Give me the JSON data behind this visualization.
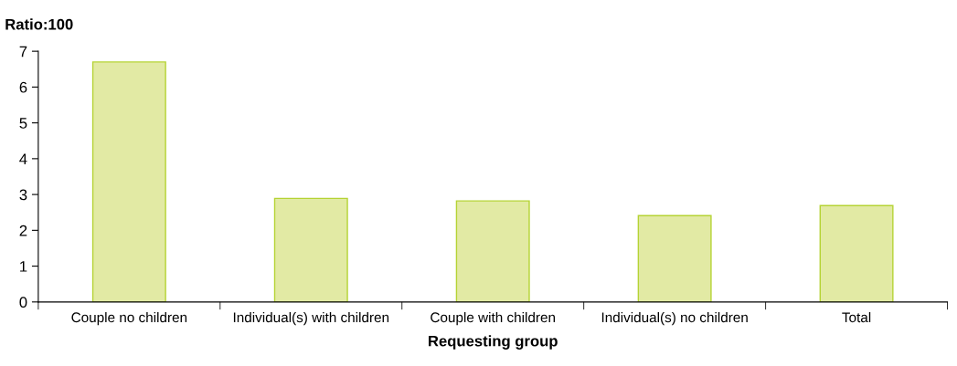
{
  "chart_data": {
    "type": "bar",
    "ylabel": "Ratio:100",
    "xlabel": "Requesting group",
    "categories": [
      "Couple no children",
      "Individual(s) with children",
      "Couple with children",
      "Individual(s) no children",
      "Total"
    ],
    "values": [
      6.7,
      2.89,
      2.82,
      2.41,
      2.69
    ],
    "color": "#e2eaa4",
    "ylim": [
      0,
      7
    ],
    "yticks": [
      0,
      1,
      2,
      3,
      4,
      5,
      6,
      7
    ],
    "grid": false
  }
}
